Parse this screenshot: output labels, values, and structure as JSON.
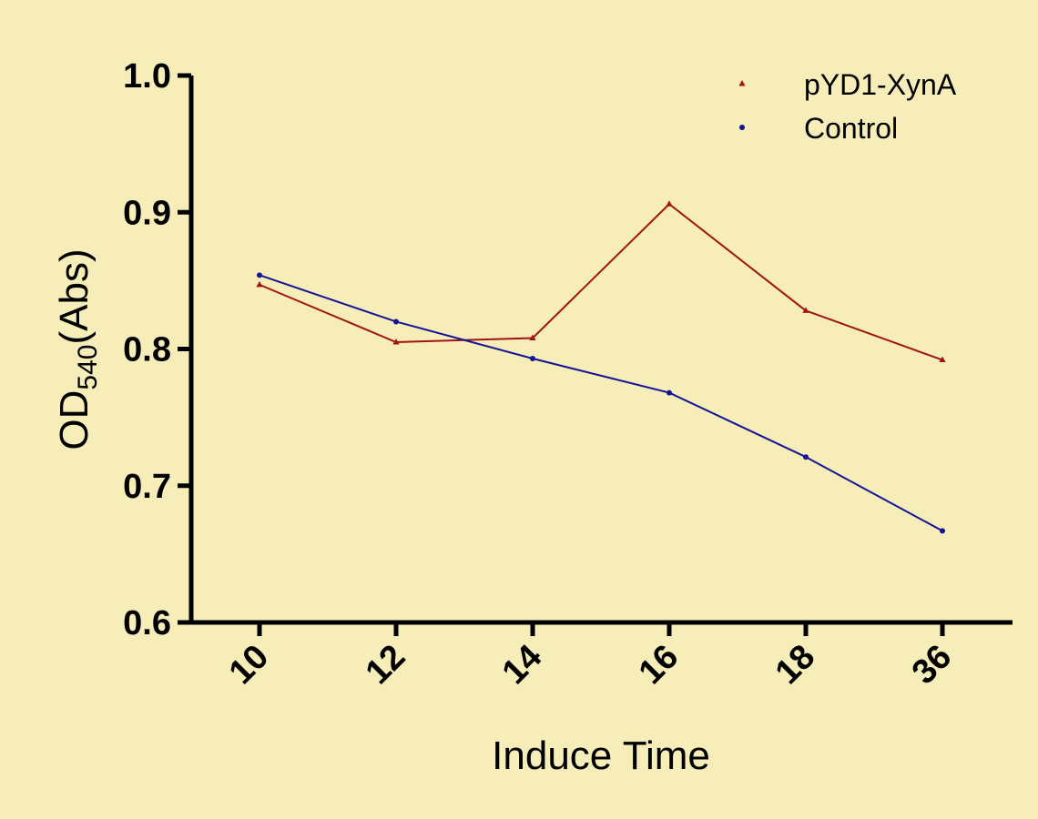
{
  "chart_data": {
    "type": "line",
    "categories": [
      "10",
      "12",
      "14",
      "16",
      "18",
      "36"
    ],
    "series": [
      {
        "name": "pYD1-XynA",
        "color": "#a01414",
        "marker": "triangle",
        "values": [
          0.847,
          0.805,
          0.808,
          0.906,
          0.828,
          0.792
        ]
      },
      {
        "name": "Control",
        "color": "#141496",
        "marker": "circle",
        "values": [
          0.854,
          0.82,
          0.793,
          0.768,
          0.721,
          0.667
        ]
      }
    ],
    "yticks": [
      "0.6",
      "0.7",
      "0.8",
      "0.9",
      "1.0"
    ],
    "ylim": [
      0.6,
      1.0
    ],
    "xlabel": "Induce Time",
    "ylabel": {
      "main": "OD",
      "sub": "540",
      "unit": "(Abs)"
    },
    "legend": "top-right",
    "grid": false
  }
}
